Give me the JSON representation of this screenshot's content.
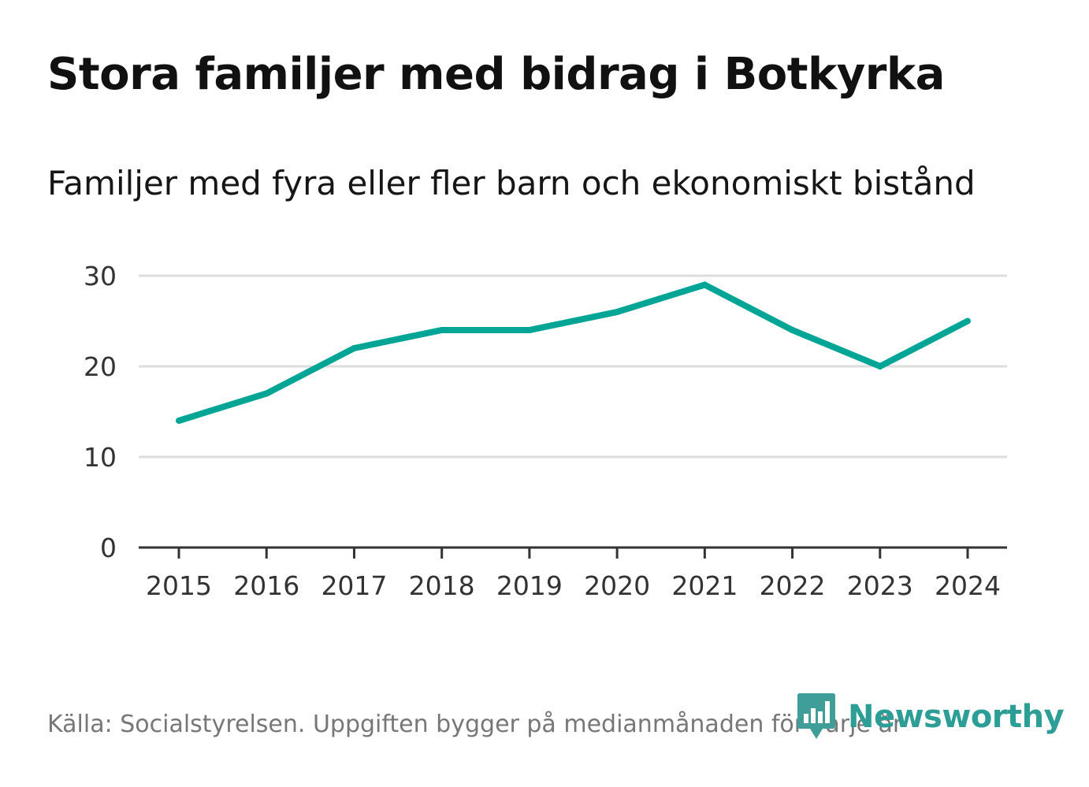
{
  "header": {
    "title": "Stora familjer med bidrag i Botkyrka",
    "subtitle": "Familjer med fyra eller fler barn och ekonomiskt bistånd"
  },
  "footer": {
    "source": "Källa: Socialstyrelsen. Uppgiften bygger på medianmånaden för varje år",
    "brand": "Newsworthy"
  },
  "colors": {
    "line": "#00a596",
    "grid": "#dddddd",
    "axis": "#333333",
    "brand": "#2d9e96"
  },
  "chart_data": {
    "type": "line",
    "title": "Stora familjer med bidrag i Botkyrka",
    "subtitle": "Familjer med fyra eller fler barn och ekonomiskt bistånd",
    "xlabel": "",
    "ylabel": "",
    "x": [
      "2015",
      "2016",
      "2017",
      "2018",
      "2019",
      "2020",
      "2021",
      "2022",
      "2023",
      "2024"
    ],
    "series": [
      {
        "name": "Familjer med fyra eller fler barn och ekonomiskt bistånd",
        "values": [
          14,
          17,
          22,
          24,
          24,
          26,
          29,
          24,
          20,
          25
        ]
      }
    ],
    "ylim": [
      0,
      30
    ],
    "yticks": [
      0,
      10,
      20,
      30
    ],
    "grid": true,
    "legend": "none"
  }
}
